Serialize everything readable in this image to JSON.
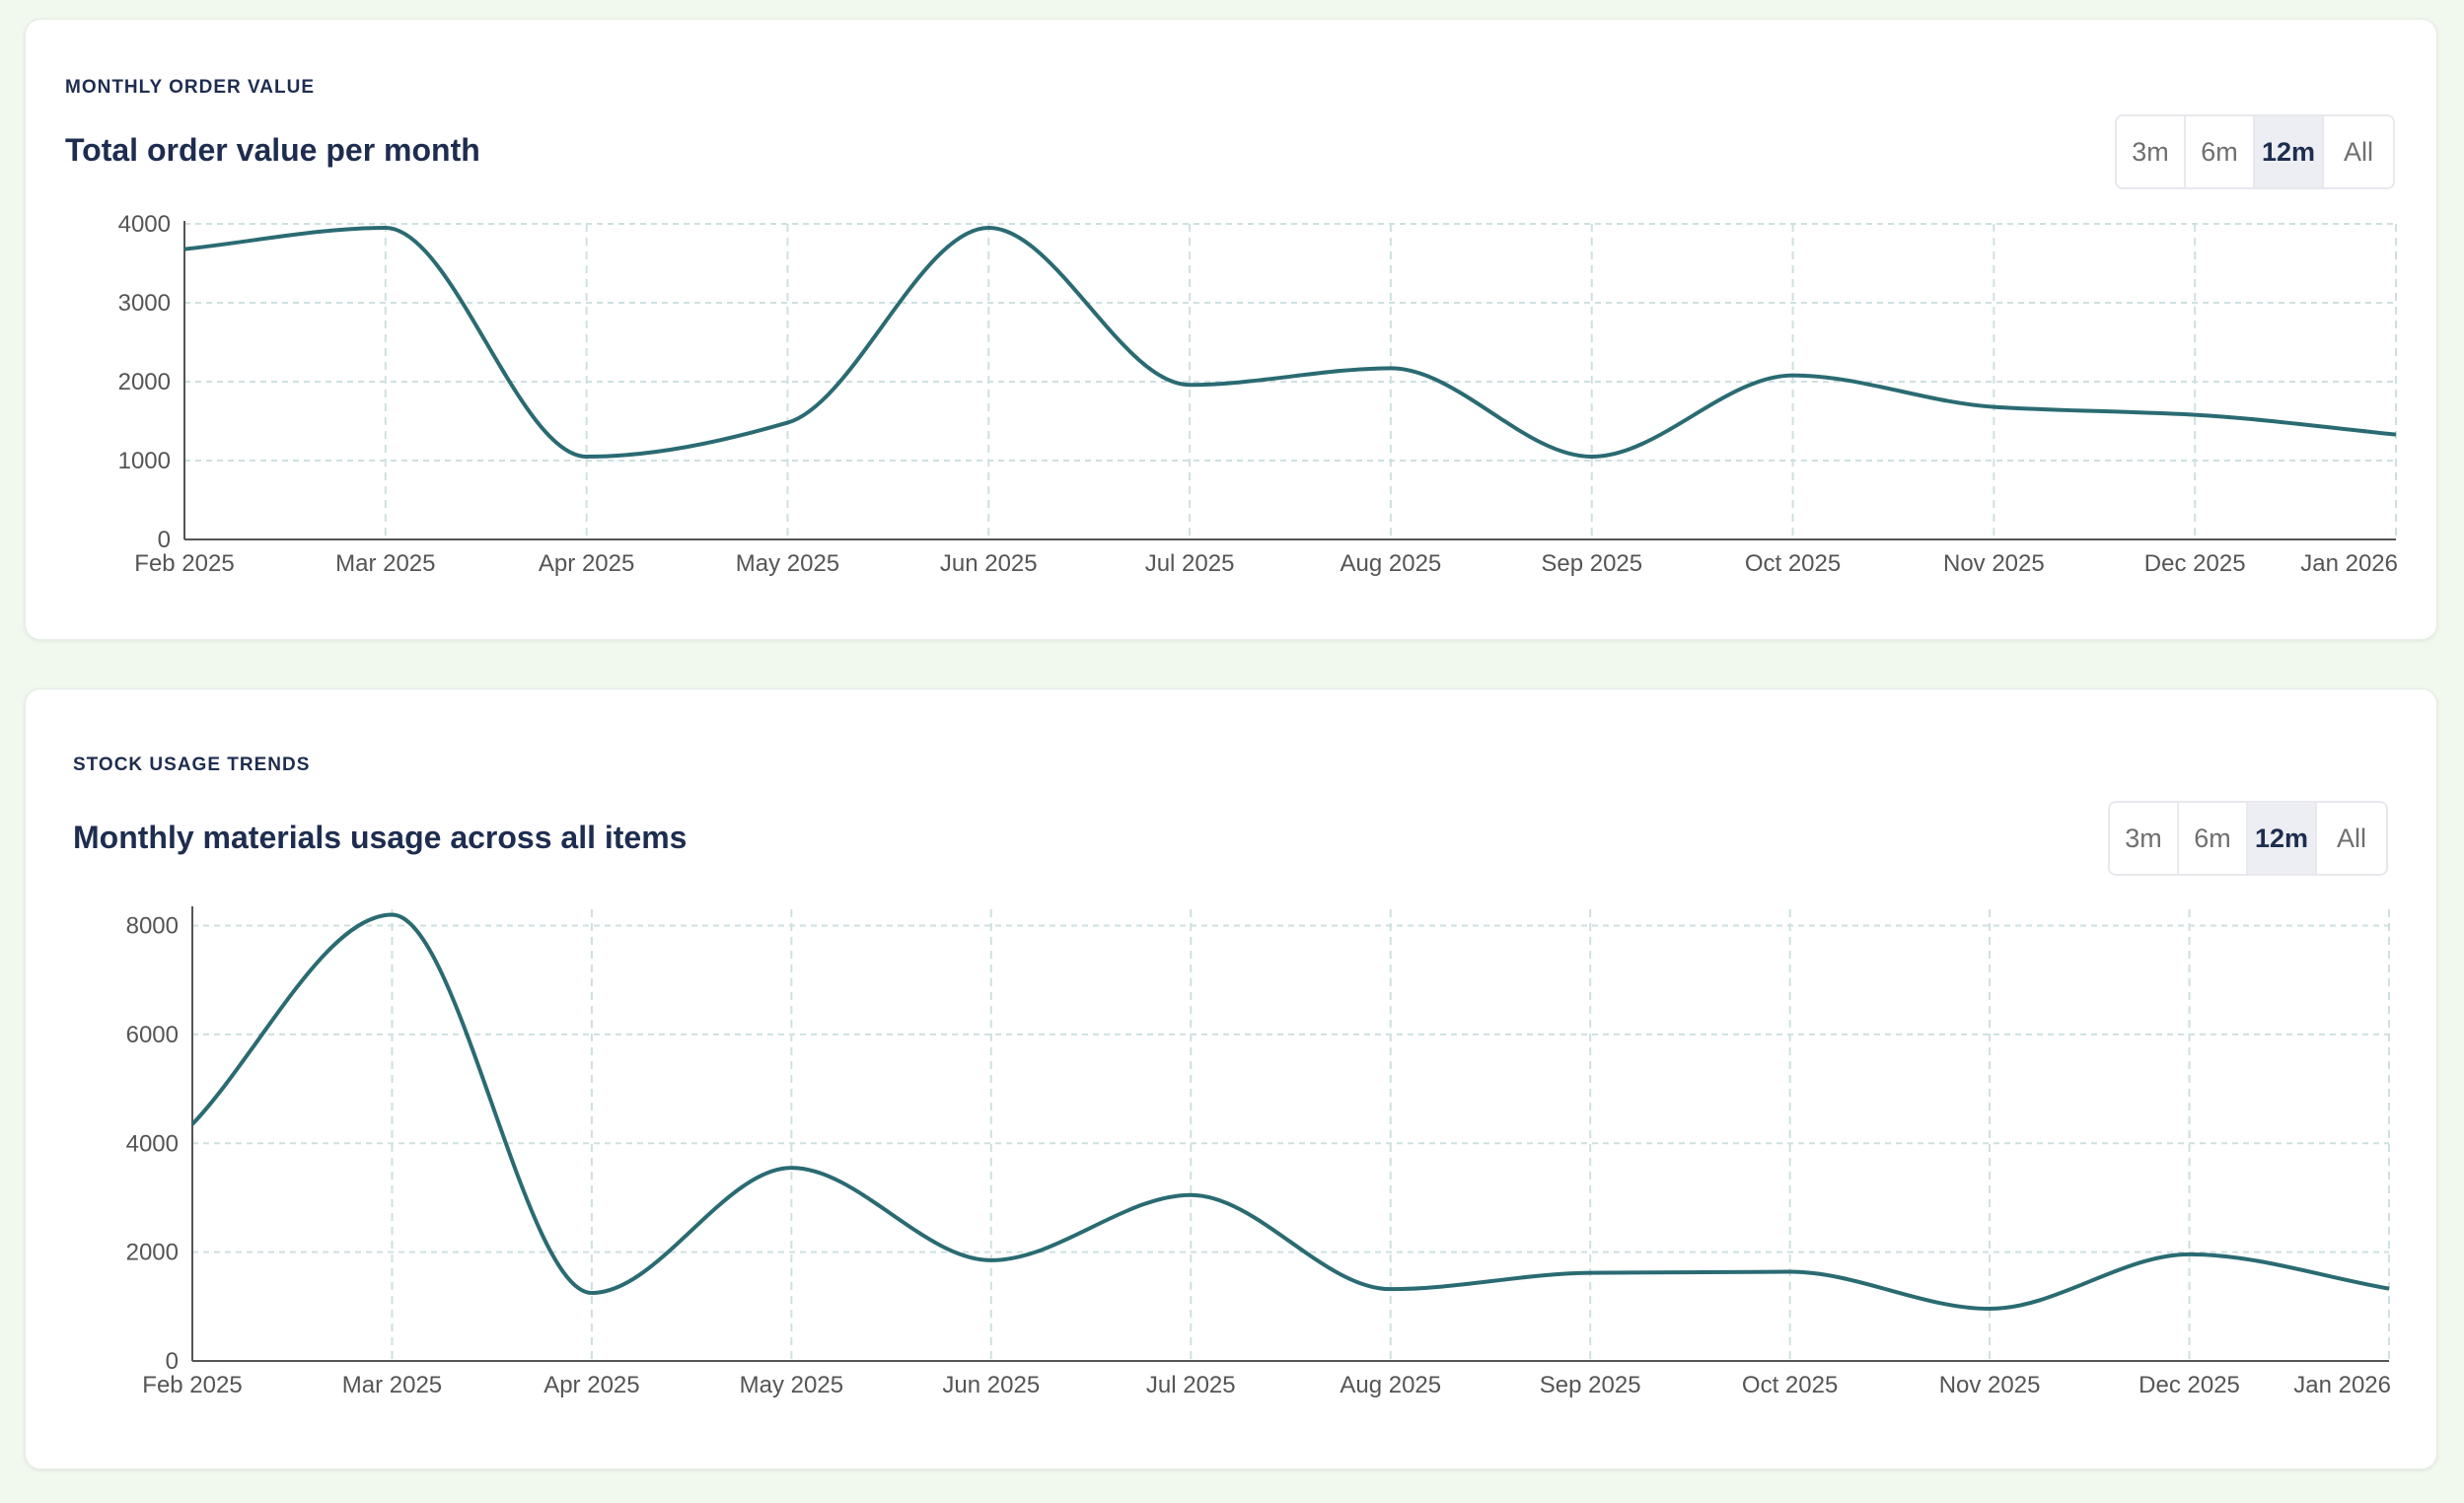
{
  "charts": [
    {
      "eyebrow": "MONTHLY ORDER VALUE",
      "title": "Total order value per month",
      "range_buttons": [
        "3m",
        "6m",
        "12m",
        "All"
      ],
      "active_range": "12m"
    },
    {
      "eyebrow": "STOCK USAGE TRENDS",
      "title": "Monthly materials usage across all items",
      "range_buttons": [
        "3m",
        "6m",
        "12m",
        "All"
      ],
      "active_range": "12m"
    }
  ],
  "colors": {
    "line": "#2a6b72",
    "grid": "#cfe0e0",
    "title": "#1e2d4f",
    "background": "#f1f8ee"
  },
  "chart_data": [
    {
      "type": "line",
      "title": "Total order value per month",
      "categories": [
        "Feb 2025",
        "Mar 2025",
        "Apr 2025",
        "May 2025",
        "Jun 2025",
        "Jul 2025",
        "Aug 2025",
        "Sep 2025",
        "Oct 2025",
        "Nov 2025",
        "Dec 2025",
        "Jan 2026"
      ],
      "values": [
        3680,
        3950,
        1050,
        1480,
        3950,
        1960,
        2170,
        1050,
        2080,
        1680,
        1580,
        1330
      ],
      "yticks": [
        0,
        1000,
        2000,
        3000,
        4000
      ],
      "ylim": [
        0,
        4000
      ],
      "grid": true,
      "curve": "smooth"
    },
    {
      "type": "line",
      "title": "Monthly materials usage across all items",
      "categories": [
        "Feb 2025",
        "Mar 2025",
        "Apr 2025",
        "May 2025",
        "Jun 2025",
        "Jul 2025",
        "Aug 2025",
        "Sep 2025",
        "Oct 2025",
        "Nov 2025",
        "Dec 2025",
        "Jan 2026"
      ],
      "values": [
        4350,
        8200,
        1250,
        3550,
        1850,
        3050,
        1320,
        1620,
        1640,
        960,
        1960,
        1330
      ],
      "yticks": [
        0,
        2000,
        4000,
        6000,
        8000
      ],
      "ylim": [
        0,
        8300
      ],
      "grid": true,
      "curve": "smooth"
    }
  ]
}
